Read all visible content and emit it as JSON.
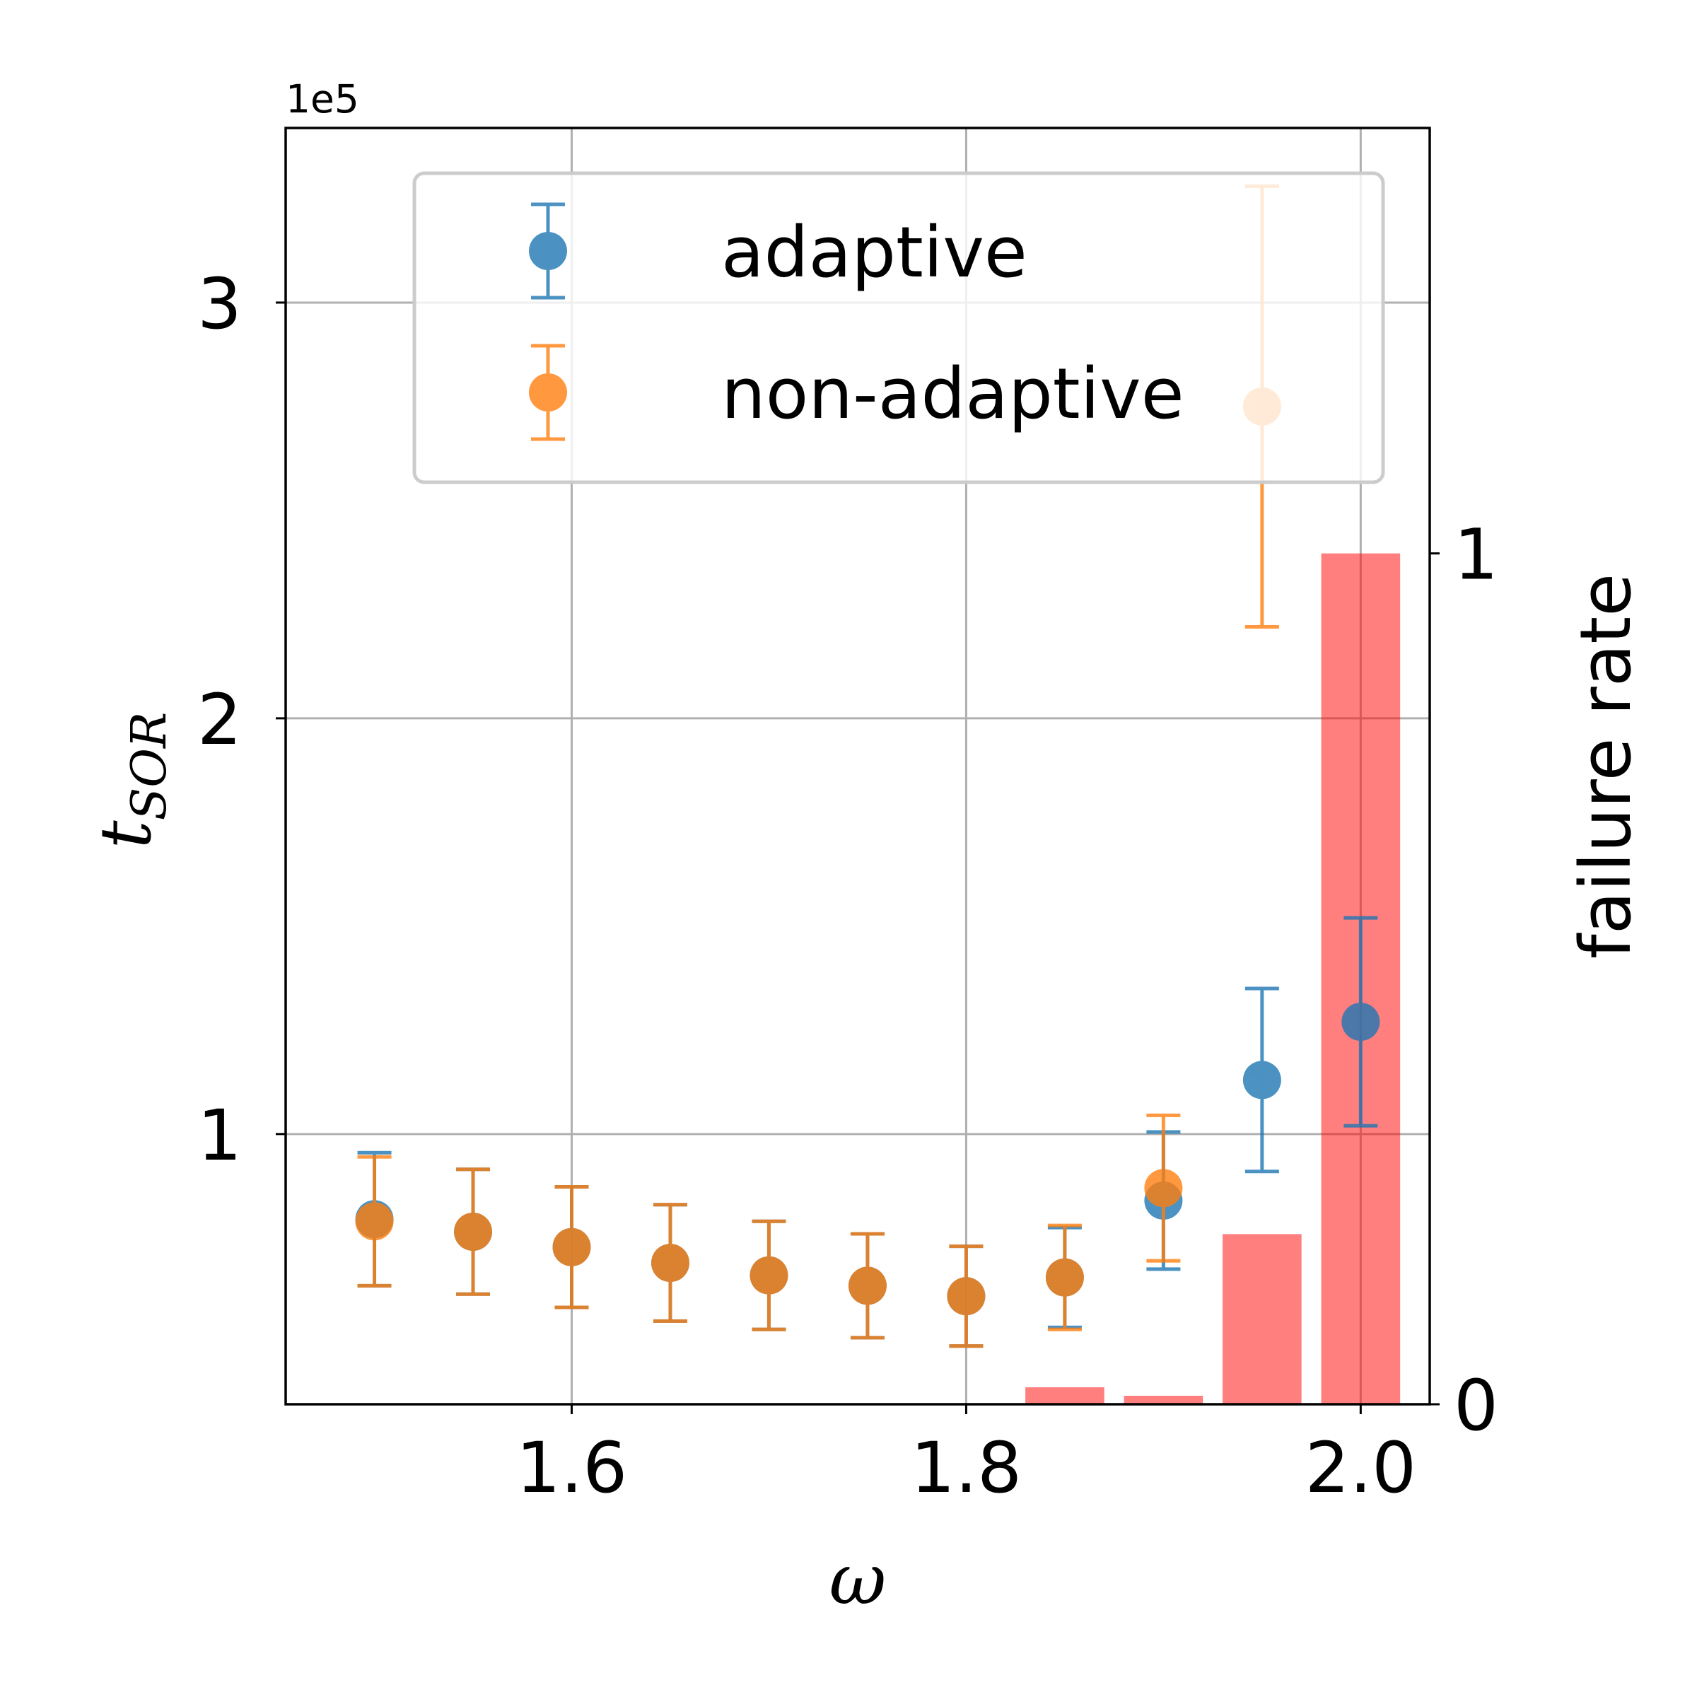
{
  "chart_data": {
    "type": "scatter",
    "xlabel": "ω",
    "ylabel_left_base": "t",
    "ylabel_left_sub": "SOR",
    "ylabel_right": "failure rate",
    "y_offset_text": "1e5",
    "xlim": [
      1.455,
      2.035
    ],
    "ylim_left": [
      0.35,
      3.42
    ],
    "ylim_right": [
      0,
      1.5
    ],
    "x_ticks": [
      1.6,
      1.8,
      2.0
    ],
    "x_tick_labels": [
      "1.6",
      "1.8",
      "2.0"
    ],
    "y_left_ticks": [
      1,
      2,
      3
    ],
    "y_left_tick_labels": [
      "1",
      "2",
      "3"
    ],
    "y_right_ticks": [
      0,
      1
    ],
    "y_right_tick_labels": [
      "0",
      "1"
    ],
    "grid": true,
    "legend_position": "top-right",
    "series": [
      {
        "name": "adaptive",
        "color": "#1f77b4",
        "x": [
          1.5,
          1.55,
          1.6,
          1.65,
          1.7,
          1.75,
          1.8,
          1.85,
          1.9,
          1.95,
          2.0
        ],
        "y": [
          0.795,
          0.765,
          0.728,
          0.69,
          0.66,
          0.635,
          0.61,
          0.655,
          0.84,
          1.13,
          1.27
        ],
        "yerr": [
          0.16,
          0.15,
          0.145,
          0.14,
          0.13,
          0.125,
          0.12,
          0.12,
          0.165,
          0.22,
          0.25
        ]
      },
      {
        "name": "non-adaptive",
        "color": "#ff7f0e",
        "x": [
          1.5,
          1.55,
          1.6,
          1.65,
          1.7,
          1.75,
          1.8,
          1.85,
          1.9,
          1.95
        ],
        "y": [
          0.79,
          0.765,
          0.728,
          0.69,
          0.66,
          0.635,
          0.61,
          0.655,
          0.87,
          2.75
        ],
        "yerr": [
          0.155,
          0.15,
          0.145,
          0.14,
          0.13,
          0.125,
          0.12,
          0.125,
          0.175,
          0.53
        ]
      }
    ],
    "failure_rate_bars": {
      "color": "#ff0000",
      "x": [
        1.85,
        1.9,
        1.95,
        2.0
      ],
      "values": [
        0.02,
        0.01,
        0.2,
        1.0
      ],
      "width": 0.04
    }
  }
}
